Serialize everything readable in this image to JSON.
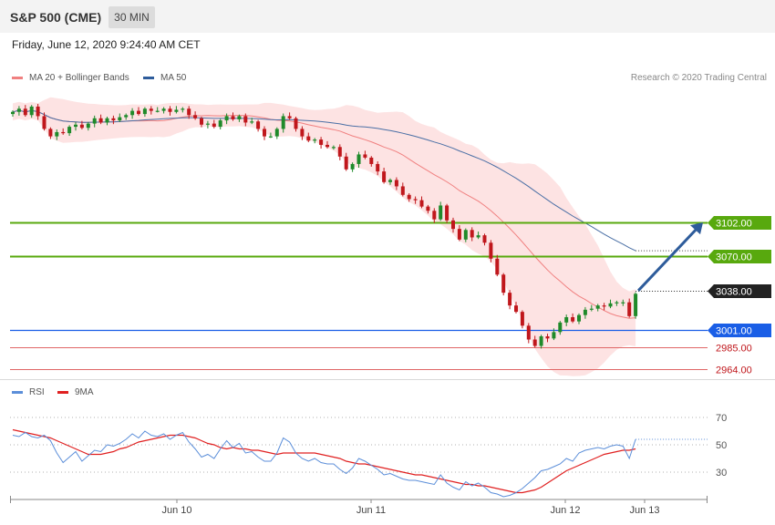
{
  "header": {
    "title": "S&P 500 (CME)",
    "interval": "30 MIN",
    "datetime": "Friday, June 12, 2020 9:24:40 AM CET"
  },
  "legend": {
    "ma20": "MA 20 + Bollinger Bands",
    "ma50": "MA 50",
    "credit": "Research © 2020 Trading Central",
    "rsi": "RSI",
    "rsi_ma": "9MA"
  },
  "colors": {
    "up": "#1f8a2a",
    "down": "#c0171c",
    "band_fill": "#fde3e3",
    "ma20": "#f08080",
    "ma50": "#4a6fa5",
    "resistance": "#58a90e",
    "current": "#222222",
    "support_blue": "#1a5ee6",
    "support_red": "#e06666",
    "arrow": "#2e5c9b",
    "rsi": "#5b8ed9",
    "rsi_ma": "#e02020"
  },
  "chart_data": [
    {
      "type": "candlestick",
      "title": "S&P 500 (CME)",
      "timeframe": "30 MIN",
      "x_labels": [
        "Jun 10",
        "Jun 11",
        "Jun 12",
        "Jun 13"
      ],
      "series_legend": [
        "MA 20 + Bollinger Bands",
        "MA 50"
      ],
      "levels": [
        {
          "value": 3102.0,
          "label": "3102.00",
          "kind": "resistance"
        },
        {
          "value": 3070.0,
          "label": "3070.00",
          "kind": "resistance"
        },
        {
          "value": 3038.0,
          "label": "3038.00",
          "kind": "current"
        },
        {
          "value": 3001.0,
          "label": "3001.00",
          "kind": "support"
        },
        {
          "value": 2985.0,
          "label": "2985.00",
          "kind": "support"
        },
        {
          "value": 2964.0,
          "label": "2964.00",
          "kind": "support"
        }
      ],
      "forecast": {
        "from": 3038.0,
        "to": 3102.0,
        "direction": "up"
      },
      "closes": [
        3206,
        3209,
        3203,
        3211,
        3202,
        3190,
        3183,
        3187,
        3186,
        3192,
        3194,
        3191,
        3195,
        3200,
        3196,
        3200,
        3198,
        3201,
        3203,
        3207,
        3204,
        3209,
        3207,
        3207,
        3209,
        3206,
        3208,
        3209,
        3203,
        3200,
        3194,
        3195,
        3192,
        3198,
        3202,
        3199,
        3202,
        3196,
        3197,
        3190,
        3183,
        3183,
        3190,
        3202,
        3200,
        3190,
        3183,
        3179,
        3180,
        3175,
        3173,
        3173,
        3164,
        3152,
        3157,
        3166,
        3163,
        3157,
        3150,
        3140,
        3142,
        3136,
        3128,
        3124,
        3123,
        3117,
        3113,
        3105,
        3118,
        3104,
        3096,
        3086,
        3095,
        3088,
        3090,
        3083,
        3068,
        3053,
        3036,
        3024,
        3018,
        3005,
        2992,
        2986,
        2995,
        2993,
        2999,
        3008,
        3013,
        3009,
        3015,
        3020,
        3021,
        3024,
        3023,
        3026,
        3027,
        3027,
        3014,
        3035
      ]
    },
    {
      "type": "line",
      "title": "RSI",
      "series": [
        {
          "name": "RSI"
        },
        {
          "name": "9MA"
        }
      ],
      "levels": [
        70,
        50,
        30
      ],
      "ylim": [
        10,
        80
      ],
      "rsi_values": [
        57,
        56,
        59,
        56,
        55,
        57,
        53,
        44,
        37,
        41,
        45,
        38,
        42,
        46,
        45,
        50,
        49,
        51,
        54,
        58,
        55,
        60,
        57,
        56,
        58,
        54,
        57,
        59,
        52,
        47,
        41,
        43,
        40,
        47,
        53,
        48,
        51,
        44,
        45,
        41,
        38,
        38,
        44,
        55,
        52,
        44,
        40,
        38,
        40,
        37,
        36,
        36,
        32,
        29,
        33,
        40,
        38,
        35,
        32,
        28,
        29,
        27,
        25,
        24,
        24,
        23,
        22,
        21,
        28,
        22,
        19,
        17,
        23,
        20,
        22,
        19,
        15,
        14,
        12,
        13,
        15,
        18,
        22,
        26,
        31,
        32,
        34,
        36,
        40,
        38,
        44,
        46,
        47,
        48,
        47,
        49,
        50,
        49,
        40,
        54
      ],
      "rsi_ma_values": [
        61,
        60,
        59,
        58,
        57,
        56,
        55,
        53,
        51,
        49,
        47,
        45,
        43,
        43,
        43,
        44,
        45,
        47,
        48,
        50,
        52,
        53,
        54,
        55,
        56,
        57,
        57,
        57,
        56,
        55,
        53,
        51,
        50,
        48,
        47,
        48,
        47,
        47,
        46,
        46,
        45,
        44,
        43,
        44,
        44,
        44,
        44,
        44,
        44,
        43,
        42,
        41,
        40,
        38,
        37,
        36,
        36,
        35,
        34,
        33,
        32,
        31,
        30,
        29,
        28,
        28,
        27,
        26,
        25,
        24,
        23,
        22,
        21,
        21,
        20,
        20,
        19,
        18,
        17,
        16,
        15,
        15,
        16,
        17,
        19,
        22,
        25,
        28,
        31,
        33,
        35,
        37,
        39,
        41,
        43,
        44,
        45,
        46,
        46,
        47
      ]
    }
  ]
}
